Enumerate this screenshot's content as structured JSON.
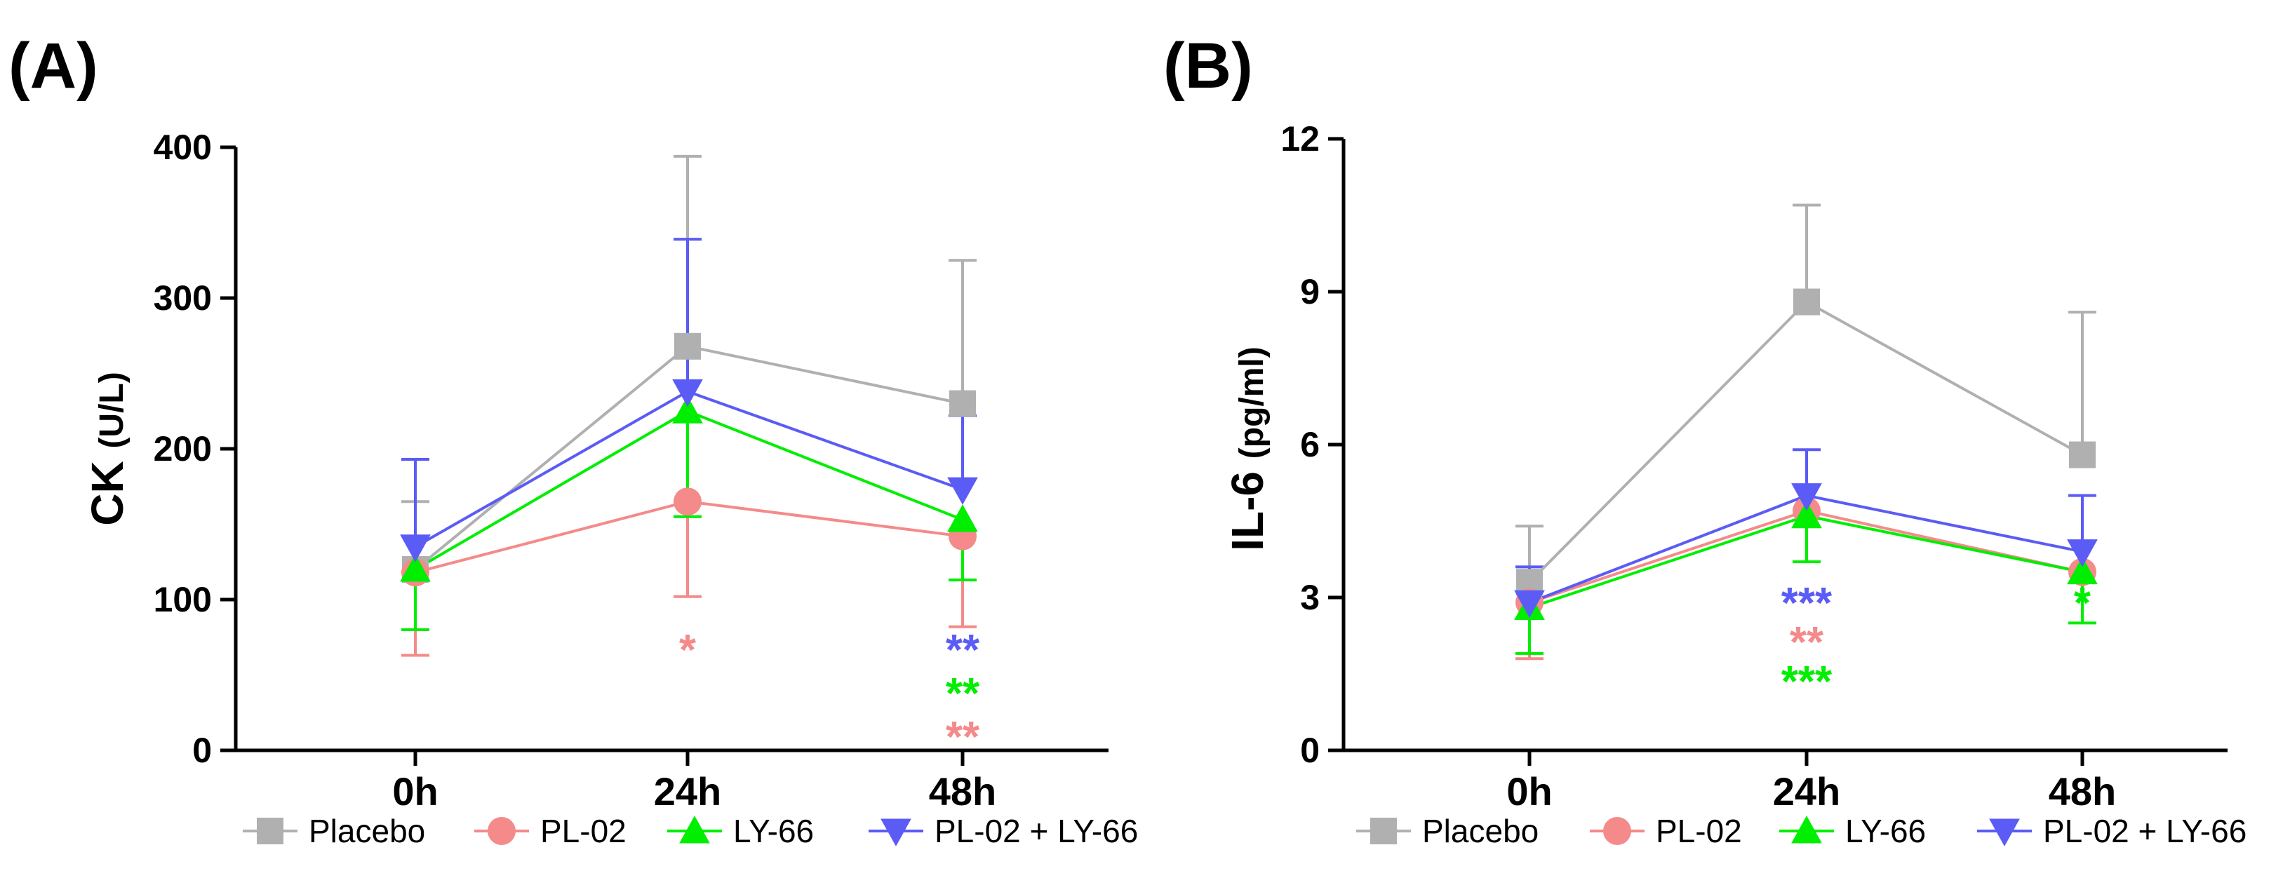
{
  "chart_data": [
    {
      "type": "line",
      "panel_label": "(A)",
      "ylabel": "CK",
      "yunit": "(U/L)",
      "ylim": [
        0,
        400
      ],
      "yticks": [
        0,
        100,
        200,
        300,
        400
      ],
      "categories": [
        "0h",
        "24h",
        "48h"
      ],
      "series": [
        {
          "name": "Placebo",
          "color": "#b0b0b0",
          "marker": "square",
          "values": [
            120,
            268,
            230
          ],
          "err_up": [
            165,
            394,
            325
          ],
          "err_down": [
            null,
            null,
            null
          ]
        },
        {
          "name": "PL-02",
          "color": "#f48a8a",
          "marker": "circle",
          "values": [
            118,
            165,
            142
          ],
          "err_up": [
            null,
            null,
            null
          ],
          "err_down": [
            63,
            102,
            82
          ]
        },
        {
          "name": "LY-66",
          "color": "#00ee00",
          "marker": "triangle-up",
          "values": [
            120,
            225,
            153
          ],
          "err_up": [
            null,
            null,
            null
          ],
          "err_down": [
            80,
            155,
            113
          ]
        },
        {
          "name": "PL-02 + LY-66",
          "color": "#5b5bf5",
          "marker": "triangle-down",
          "values": [
            135,
            238,
            173
          ],
          "err_up": [
            193,
            339,
            222
          ],
          "err_down": [
            null,
            null,
            null
          ]
        }
      ],
      "annotations": [
        {
          "category": "24h",
          "text": "*",
          "color": "#f48a8a",
          "row": 0
        },
        {
          "category": "48h",
          "text": "**",
          "color": "#5b5bf5",
          "row": 0
        },
        {
          "category": "48h",
          "text": "**",
          "color": "#00ee00",
          "row": 1
        },
        {
          "category": "48h",
          "text": "**",
          "color": "#f48a8a",
          "row": 2
        }
      ]
    },
    {
      "type": "line",
      "panel_label": "(B)",
      "ylabel": "IL-6",
      "yunit": "(pg/ml)",
      "ylim": [
        0,
        12
      ],
      "yticks": [
        0,
        3,
        6,
        9,
        12
      ],
      "categories": [
        "0h",
        "24h",
        "48h"
      ],
      "series": [
        {
          "name": "Placebo",
          "color": "#b0b0b0",
          "marker": "square",
          "values": [
            3.3,
            8.8,
            5.8
          ],
          "err_up": [
            4.4,
            10.7,
            8.6
          ],
          "err_down": [
            null,
            null,
            null
          ]
        },
        {
          "name": "PL-02",
          "color": "#f48a8a",
          "marker": "circle",
          "values": [
            2.9,
            4.7,
            3.5
          ],
          "err_up": [
            null,
            null,
            null
          ],
          "err_down": [
            1.8,
            null,
            null
          ]
        },
        {
          "name": "LY-66",
          "color": "#00ee00",
          "marker": "triangle-up",
          "values": [
            2.8,
            4.6,
            3.5
          ],
          "err_up": [
            null,
            null,
            null
          ],
          "err_down": [
            1.9,
            3.7,
            2.5
          ]
        },
        {
          "name": "PL-02 + LY-66",
          "color": "#5b5bf5",
          "marker": "triangle-down",
          "values": [
            2.9,
            5.0,
            3.9
          ],
          "err_up": [
            3.6,
            5.9,
            5.0
          ],
          "err_down": [
            null,
            null,
            null
          ]
        }
      ],
      "annotations": [
        {
          "category": "24h",
          "text": "***",
          "color": "#5b5bf5",
          "row": 0
        },
        {
          "category": "24h",
          "text": "**",
          "color": "#f48a8a",
          "row": 1
        },
        {
          "category": "24h",
          "text": "***",
          "color": "#00ee00",
          "row": 2
        },
        {
          "category": "48h",
          "text": "*",
          "color": "#00ee00",
          "row": 0
        }
      ]
    }
  ]
}
